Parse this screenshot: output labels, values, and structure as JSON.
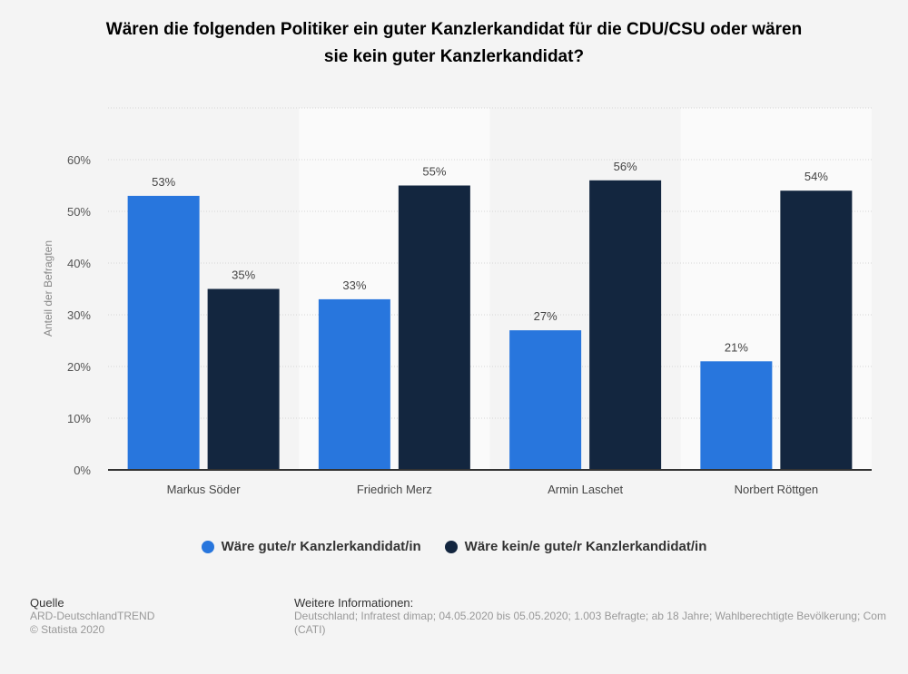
{
  "chart_data": {
    "type": "bar",
    "title": "Wären die folgenden Politiker ein guter Kanzlerkandidat für die CDU/CSU oder wären sie kein guter Kanzlerkandidat?",
    "title_lines": [
      "Wären die folgenden Politiker ein guter Kanzlerkandidat für die CDU/CSU oder wären",
      "sie kein guter Kanzlerkandidat?"
    ],
    "categories": [
      "Markus Söder",
      "Friedrich Merz",
      "Armin Laschet",
      "Norbert Röttgen"
    ],
    "series": [
      {
        "name": "Wäre gute/r Kanzlerkandidat/in",
        "values": [
          53,
          33,
          27,
          21
        ],
        "color": "#2876dd"
      },
      {
        "name": "Wäre kein/e gute/r Kanzlerkandidat/in",
        "values": [
          35,
          55,
          56,
          54
        ],
        "color": "#13263f"
      }
    ],
    "xlabel": "",
    "ylabel": "Anteil der Befragten",
    "ylim": [
      0,
      70
    ],
    "yticks": [
      0,
      10,
      20,
      30,
      40,
      50,
      60
    ],
    "ytick_labels": [
      "0%",
      "10%",
      "20%",
      "30%",
      "40%",
      "50%",
      "60%"
    ],
    "value_suffix": "%",
    "grid": true,
    "legend_position": "bottom"
  },
  "footer": {
    "source_heading": "Quelle",
    "source": "ARD-DeutschlandTREND",
    "copyright": "© Statista 2020",
    "info_heading": "Weitere Informationen:",
    "info_line1": "Deutschland; Infratest dimap; 04.05.2020 bis 05.05.2020; 1.003 Befragte; ab 18 Jahre; Wahlberechtigte Bevölkerung; Com",
    "info_line2": "(CATI)"
  }
}
